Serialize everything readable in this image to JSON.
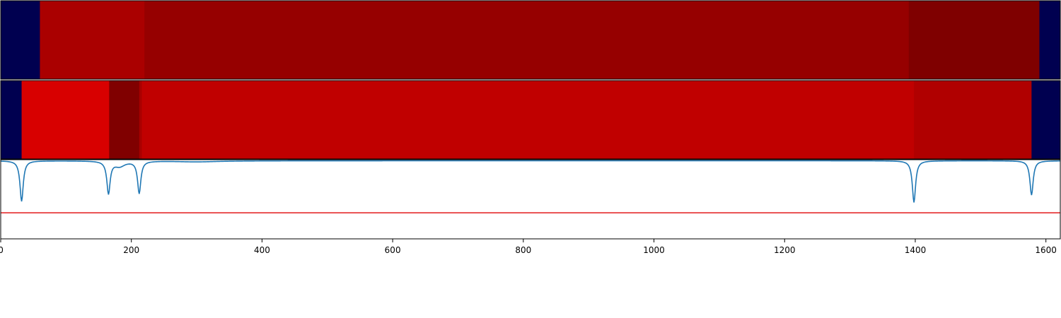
{
  "chart_data": [
    {
      "type": "heatmap",
      "title": "",
      "xlim": [
        0,
        1622
      ],
      "segments": [
        {
          "start": 0,
          "end": 60,
          "color": "#000050"
        },
        {
          "start": 60,
          "end": 220,
          "color": "#aa0000"
        },
        {
          "start": 220,
          "end": 1390,
          "color": "#960000"
        },
        {
          "start": 1390,
          "end": 1590,
          "color": "#7f0000"
        },
        {
          "start": 1590,
          "end": 1622,
          "color": "#000050"
        }
      ]
    },
    {
      "type": "heatmap",
      "title": "",
      "xlim": [
        0,
        1622
      ],
      "segments": [
        {
          "start": 0,
          "end": 32,
          "color": "#000050"
        },
        {
          "start": 32,
          "end": 166,
          "color": "#d80000"
        },
        {
          "start": 166,
          "end": 212,
          "color": "#800000"
        },
        {
          "start": 212,
          "end": 216,
          "color": "#a80000"
        },
        {
          "start": 216,
          "end": 1398,
          "color": "#c00000"
        },
        {
          "start": 1398,
          "end": 1578,
          "color": "#b00000"
        },
        {
          "start": 1578,
          "end": 1622,
          "color": "#000050"
        }
      ]
    },
    {
      "type": "line",
      "title": "",
      "xlabel": "",
      "ylabel": "",
      "xlim": [
        0,
        1622
      ],
      "ylim": [
        -1.5,
        0.02
      ],
      "xticks": [
        "0",
        "200",
        "400",
        "600",
        "800",
        "1000",
        "1200",
        "1400",
        "1600"
      ],
      "xtick_values": [
        0,
        200,
        400,
        600,
        800,
        1000,
        1200,
        1400,
        1600
      ],
      "grid": false,
      "threshold": {
        "value": -1.0,
        "color": "#e31a1c"
      },
      "series": [
        {
          "color": "#1f77b4",
          "dips": [
            {
              "center": 32,
              "depth": 0.78,
              "width": 3
            },
            {
              "center": 165,
              "depth": 0.62,
              "width": 3
            },
            {
              "center": 182,
              "depth": 0.1,
              "width": 10
            },
            {
              "center": 212,
              "depth": 0.62,
              "width": 3
            },
            {
              "center": 300,
              "depth": 0.02,
              "width": 40
            },
            {
              "center": 1398,
              "depth": 0.8,
              "width": 3
            },
            {
              "center": 1578,
              "depth": 0.66,
              "width": 3
            }
          ]
        }
      ]
    }
  ]
}
